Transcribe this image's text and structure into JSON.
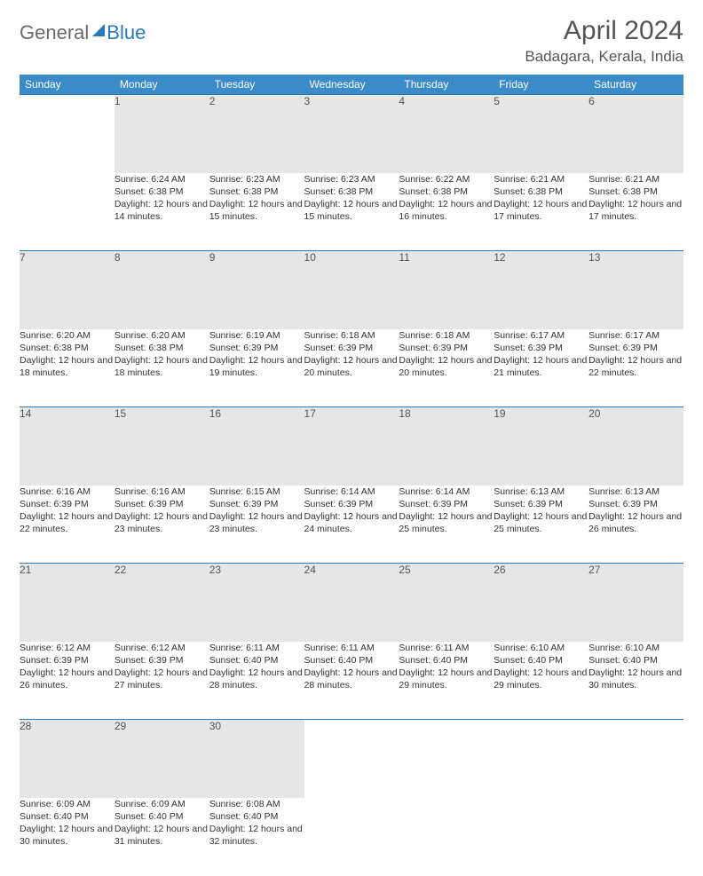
{
  "logo": {
    "part1": "General",
    "part2": "Blue"
  },
  "title": "April 2024",
  "location": "Badagara, Kerala, India",
  "colors": {
    "header_bg": "#3b8bc8",
    "header_text": "#ffffff",
    "daynum_bg": "#e6e6e6",
    "border": "#2a7ab8",
    "text": "#333333",
    "title": "#555555",
    "logo_gray": "#6a6a6a",
    "logo_blue": "#2a7ab8"
  },
  "weekdays": [
    "Sunday",
    "Monday",
    "Tuesday",
    "Wednesday",
    "Thursday",
    "Friday",
    "Saturday"
  ],
  "weeks": [
    [
      null,
      {
        "n": "1",
        "sr": "6:24 AM",
        "ss": "6:38 PM",
        "dl": "12 hours and 14 minutes."
      },
      {
        "n": "2",
        "sr": "6:23 AM",
        "ss": "6:38 PM",
        "dl": "12 hours and 15 minutes."
      },
      {
        "n": "3",
        "sr": "6:23 AM",
        "ss": "6:38 PM",
        "dl": "12 hours and 15 minutes."
      },
      {
        "n": "4",
        "sr": "6:22 AM",
        "ss": "6:38 PM",
        "dl": "12 hours and 16 minutes."
      },
      {
        "n": "5",
        "sr": "6:21 AM",
        "ss": "6:38 PM",
        "dl": "12 hours and 17 minutes."
      },
      {
        "n": "6",
        "sr": "6:21 AM",
        "ss": "6:38 PM",
        "dl": "12 hours and 17 minutes."
      }
    ],
    [
      {
        "n": "7",
        "sr": "6:20 AM",
        "ss": "6:38 PM",
        "dl": "12 hours and 18 minutes."
      },
      {
        "n": "8",
        "sr": "6:20 AM",
        "ss": "6:38 PM",
        "dl": "12 hours and 18 minutes."
      },
      {
        "n": "9",
        "sr": "6:19 AM",
        "ss": "6:39 PM",
        "dl": "12 hours and 19 minutes."
      },
      {
        "n": "10",
        "sr": "6:18 AM",
        "ss": "6:39 PM",
        "dl": "12 hours and 20 minutes."
      },
      {
        "n": "11",
        "sr": "6:18 AM",
        "ss": "6:39 PM",
        "dl": "12 hours and 20 minutes."
      },
      {
        "n": "12",
        "sr": "6:17 AM",
        "ss": "6:39 PM",
        "dl": "12 hours and 21 minutes."
      },
      {
        "n": "13",
        "sr": "6:17 AM",
        "ss": "6:39 PM",
        "dl": "12 hours and 22 minutes."
      }
    ],
    [
      {
        "n": "14",
        "sr": "6:16 AM",
        "ss": "6:39 PM",
        "dl": "12 hours and 22 minutes."
      },
      {
        "n": "15",
        "sr": "6:16 AM",
        "ss": "6:39 PM",
        "dl": "12 hours and 23 minutes."
      },
      {
        "n": "16",
        "sr": "6:15 AM",
        "ss": "6:39 PM",
        "dl": "12 hours and 23 minutes."
      },
      {
        "n": "17",
        "sr": "6:14 AM",
        "ss": "6:39 PM",
        "dl": "12 hours and 24 minutes."
      },
      {
        "n": "18",
        "sr": "6:14 AM",
        "ss": "6:39 PM",
        "dl": "12 hours and 25 minutes."
      },
      {
        "n": "19",
        "sr": "6:13 AM",
        "ss": "6:39 PM",
        "dl": "12 hours and 25 minutes."
      },
      {
        "n": "20",
        "sr": "6:13 AM",
        "ss": "6:39 PM",
        "dl": "12 hours and 26 minutes."
      }
    ],
    [
      {
        "n": "21",
        "sr": "6:12 AM",
        "ss": "6:39 PM",
        "dl": "12 hours and 26 minutes."
      },
      {
        "n": "22",
        "sr": "6:12 AM",
        "ss": "6:39 PM",
        "dl": "12 hours and 27 minutes."
      },
      {
        "n": "23",
        "sr": "6:11 AM",
        "ss": "6:40 PM",
        "dl": "12 hours and 28 minutes."
      },
      {
        "n": "24",
        "sr": "6:11 AM",
        "ss": "6:40 PM",
        "dl": "12 hours and 28 minutes."
      },
      {
        "n": "25",
        "sr": "6:11 AM",
        "ss": "6:40 PM",
        "dl": "12 hours and 29 minutes."
      },
      {
        "n": "26",
        "sr": "6:10 AM",
        "ss": "6:40 PM",
        "dl": "12 hours and 29 minutes."
      },
      {
        "n": "27",
        "sr": "6:10 AM",
        "ss": "6:40 PM",
        "dl": "12 hours and 30 minutes."
      }
    ],
    [
      {
        "n": "28",
        "sr": "6:09 AM",
        "ss": "6:40 PM",
        "dl": "12 hours and 30 minutes."
      },
      {
        "n": "29",
        "sr": "6:09 AM",
        "ss": "6:40 PM",
        "dl": "12 hours and 31 minutes."
      },
      {
        "n": "30",
        "sr": "6:08 AM",
        "ss": "6:40 PM",
        "dl": "12 hours and 32 minutes."
      },
      null,
      null,
      null,
      null
    ]
  ],
  "labels": {
    "sunrise": "Sunrise:",
    "sunset": "Sunset:",
    "daylight": "Daylight:"
  }
}
